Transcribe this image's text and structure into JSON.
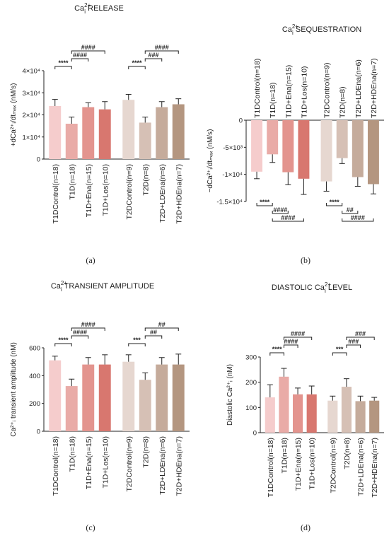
{
  "colors": [
    "#f5cccc",
    "#e9aba7",
    "#e3948e",
    "#d8776f",
    "#e6d7d0",
    "#d6c0b5",
    "#c5ab9b",
    "#b49680"
  ],
  "chart_data": [
    {
      "id": "a",
      "type": "bar",
      "panel_label": "(a)",
      "title_main": "Ca",
      "title_sup": "2+",
      "title_sub": "i",
      "title_rest": " RELEASE",
      "ylabel": "+dCa²⁺ᵢ/dtₘₐₓ (nM/s)",
      "ylim": [
        0,
        40000
      ],
      "yticks": [
        {
          "v": 0,
          "label": "0"
        },
        {
          "v": 10000,
          "label": "1×10⁴"
        },
        {
          "v": 20000,
          "label": "2×10⁴"
        },
        {
          "v": 30000,
          "label": "3×10⁴"
        },
        {
          "v": 40000,
          "label": "4×10⁴"
        }
      ],
      "categories": [
        "T1DControl(n=18)",
        "T1D(n=18)",
        "T1D+Ena(n=15)",
        "T1D+Los(n=10)",
        "T2DControl(n=9)",
        "T2D(n=8)",
        "T2D+LDEna(n=6)",
        "T2D+HDEna(n=7)"
      ],
      "values": [
        24000,
        16000,
        23500,
        22500,
        26800,
        16500,
        23500,
        24800
      ],
      "errors": [
        3000,
        3000,
        2000,
        3500,
        2500,
        2500,
        2500,
        2500
      ],
      "brackets": [
        {
          "from": 0,
          "to": 1,
          "level": 0,
          "label": "****"
        },
        {
          "from": 1,
          "to": 2,
          "level": 1,
          "label": "####"
        },
        {
          "from": 1,
          "to": 3,
          "level": 2,
          "label": "####"
        },
        {
          "from": 4,
          "to": 5,
          "level": 0,
          "label": "****"
        },
        {
          "from": 5,
          "to": 6,
          "level": 1,
          "label": "###"
        },
        {
          "from": 5,
          "to": 7,
          "level": 2,
          "label": "####"
        }
      ]
    },
    {
      "id": "b",
      "type": "bar",
      "panel_label": "(b)",
      "title_main": "Ca",
      "title_sup": "2+",
      "title_sub": "i",
      "title_rest": " SEQUESTRATION",
      "ylabel": "−dCa²⁺ᵢ/dtₘₐₓ (nM/s)",
      "ylim": [
        -15000,
        0
      ],
      "yticks": [
        {
          "v": 0,
          "label": "0"
        },
        {
          "v": -5000,
          "label": "-5×10³"
        },
        {
          "v": -10000,
          "label": "-1×10⁴"
        },
        {
          "v": -15000,
          "label": "-1.5×10⁴"
        }
      ],
      "categories": [
        "T1DControl(n=18)",
        "T1D(n=18)",
        "T1D+Ena(n=15)",
        "T1D+Los(n=10)",
        "T2DControl(n=9)",
        "T2D(n=8)",
        "T2D+LDEna(n=6)",
        "T2D+HDEna(n=7)"
      ],
      "values": [
        -9500,
        -6300,
        -9600,
        -10800,
        -11300,
        -7000,
        -10500,
        -11800
      ],
      "errors": [
        1300,
        1500,
        2300,
        2900,
        1800,
        1000,
        1700,
        1800
      ],
      "brackets": [
        {
          "from": 0,
          "to": 1,
          "level": 0,
          "label": "****"
        },
        {
          "from": 1,
          "to": 2,
          "level": 1,
          "label": "####"
        },
        {
          "from": 1,
          "to": 3,
          "level": 2,
          "label": "####"
        },
        {
          "from": 4,
          "to": 5,
          "level": 0,
          "label": "****"
        },
        {
          "from": 5,
          "to": 6,
          "level": 1,
          "label": "##"
        },
        {
          "from": 5,
          "to": 7,
          "level": 2,
          "label": "####"
        }
      ]
    },
    {
      "id": "c",
      "type": "bar",
      "panel_label": "(c)",
      "title_main": "Ca",
      "title_sup": "2+",
      "title_sub": "i",
      "title_rest": " TRANSIENT AMPLITUDE",
      "ylabel": "Ca²⁺ᵢ transient amplitude (nM)",
      "ylim": [
        0,
        600
      ],
      "yticks": [
        {
          "v": 0,
          "label": "0"
        },
        {
          "v": 200,
          "label": "200"
        },
        {
          "v": 400,
          "label": "400"
        },
        {
          "v": 600,
          "label": "600"
        }
      ],
      "categories": [
        "T1DControl(n=18)",
        "T1D(n=18)",
        "T1D+Ena(n=15)",
        "T1D+Los(n=10)",
        "T2DControl(n=9)",
        "T2D(n=8)",
        "T2D+LDEna(n=6)",
        "T2D+HDEna(n=7)"
      ],
      "values": [
        510,
        325,
        480,
        480,
        500,
        370,
        480,
        480
      ],
      "errors": [
        30,
        50,
        50,
        70,
        50,
        50,
        50,
        75
      ],
      "brackets": [
        {
          "from": 0,
          "to": 1,
          "level": 0,
          "label": "****"
        },
        {
          "from": 1,
          "to": 2,
          "level": 1,
          "label": "####"
        },
        {
          "from": 1,
          "to": 3,
          "level": 2,
          "label": "####"
        },
        {
          "from": 4,
          "to": 5,
          "level": 0,
          "label": "***"
        },
        {
          "from": 5,
          "to": 6,
          "level": 1,
          "label": "##"
        },
        {
          "from": 5,
          "to": 7,
          "level": 2,
          "label": "##"
        }
      ]
    },
    {
      "id": "d",
      "type": "bar",
      "panel_label": "(d)",
      "title_main": "DIASTOLIC Ca",
      "title_sup": "2+",
      "title_sub": "i",
      "title_rest": " LEVEL",
      "ylabel": "Diastolic Ca²⁺ᵢ (nM)",
      "ylim": [
        0,
        300
      ],
      "yticks": [
        {
          "v": 0,
          "label": "0"
        },
        {
          "v": 100,
          "label": "100"
        },
        {
          "v": 200,
          "label": "200"
        },
        {
          "v": 300,
          "label": "300"
        }
      ],
      "categories": [
        "T1DControl(n=18)",
        "T1D(n=18)",
        "T1D+Ena(n=15)",
        "T1D+Los(n=10)",
        "T2DControl(n=9)",
        "T2D(n=8)",
        "T2D+LDEna(n=6)",
        "T2D+HDEna(n=7)"
      ],
      "values": [
        140,
        222,
        152,
        152,
        127,
        182,
        125,
        127
      ],
      "errors": [
        50,
        33,
        25,
        33,
        18,
        32,
        20,
        13
      ],
      "brackets": [
        {
          "from": 0,
          "to": 1,
          "level": 0,
          "label": "****"
        },
        {
          "from": 1,
          "to": 2,
          "level": 1,
          "label": "####"
        },
        {
          "from": 1,
          "to": 3,
          "level": 2,
          "label": "####"
        },
        {
          "from": 4,
          "to": 5,
          "level": 0,
          "label": "***"
        },
        {
          "from": 5,
          "to": 6,
          "level": 1,
          "label": "###"
        },
        {
          "from": 5,
          "to": 7,
          "level": 2,
          "label": "###"
        }
      ]
    }
  ]
}
